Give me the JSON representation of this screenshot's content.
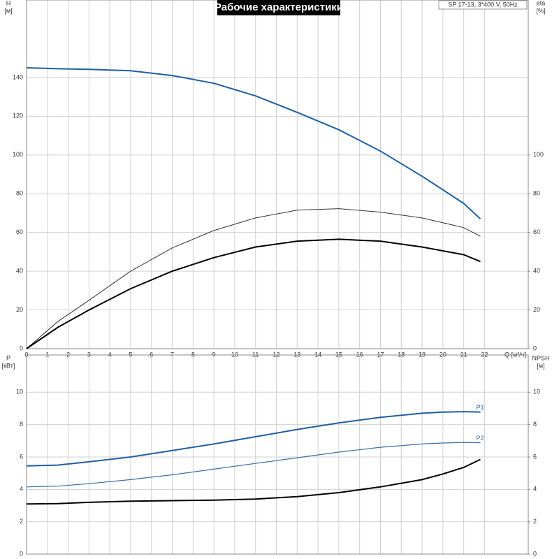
{
  "chart_data": [
    {
      "type": "line",
      "title": "Рабочие характеристики",
      "annotation": "SP 17-13, 3*400 V, 50Hz",
      "xlabel": "Q [м³/ч]",
      "ylabel": "H",
      "yunit": "[м]",
      "y2label": "eta",
      "y2unit": "[%]",
      "x": [
        0,
        1.5,
        3,
        5,
        7,
        9,
        11,
        13,
        15,
        17,
        19,
        21,
        21.8
      ],
      "xlim": [
        0,
        24.1
      ],
      "xticks": [
        0,
        1,
        2,
        3,
        4,
        5,
        6,
        7,
        8,
        9,
        10,
        11,
        12,
        13,
        14,
        15,
        16,
        17,
        18,
        19,
        20,
        21,
        22
      ],
      "ylim": [
        0,
        180
      ],
      "yticks": [
        0,
        20,
        40,
        60,
        80,
        100,
        120,
        140
      ],
      "y2lim": [
        0,
        180
      ],
      "y2ticks": [
        0,
        20,
        40,
        60,
        80,
        100
      ],
      "grid": true,
      "series": [
        {
          "color": "#1f5fa0",
          "line_width": 2,
          "values": [
            145,
            144.5,
            144.2,
            143.5,
            141,
            137,
            130.5,
            122,
            113,
            102,
            89,
            75,
            67
          ]
        },
        {
          "color": "#333333",
          "line_width": 1,
          "axis": "y2",
          "values": [
            0,
            14,
            25,
            40,
            52,
            61,
            67.5,
            71.5,
            72.3,
            70.5,
            67.5,
            62.5,
            58
          ]
        },
        {
          "color": "#000000",
          "line_width": 2,
          "axis": "y2",
          "values": [
            0,
            11,
            20,
            31,
            40,
            47,
            52.5,
            55.5,
            56.5,
            55.5,
            52.5,
            48.5,
            45
          ]
        }
      ]
    },
    {
      "type": "line",
      "ylabel": "P",
      "yunit": "[кВт]",
      "y2label": "NPSH",
      "y2unit": "[м]",
      "x": [
        0,
        1.5,
        3,
        5,
        7,
        9,
        11,
        13,
        15,
        17,
        19,
        20,
        21,
        21.8
      ],
      "xlim": [
        0,
        24.1
      ],
      "ylim": [
        0,
        12.3
      ],
      "yticks": [
        0,
        2,
        4,
        6,
        8,
        10
      ],
      "y2lim": [
        0,
        12.3
      ],
      "y2ticks": [
        0,
        2,
        4,
        6,
        8,
        10
      ],
      "grid": true,
      "series": [
        {
          "name": "P1",
          "color": "#1f5fa0",
          "line_width": 2,
          "values": [
            5.45,
            5.5,
            5.7,
            6.0,
            6.4,
            6.8,
            7.25,
            7.7,
            8.1,
            8.45,
            8.7,
            8.77,
            8.8,
            8.78
          ]
        },
        {
          "name": "P2",
          "color": "#3a6ea5",
          "line_width": 1.2,
          "values": [
            4.15,
            4.2,
            4.35,
            4.6,
            4.9,
            5.25,
            5.6,
            5.95,
            6.3,
            6.6,
            6.8,
            6.86,
            6.9,
            6.88
          ]
        },
        {
          "color": "#000000",
          "line_width": 2,
          "axis": "y2",
          "values": [
            3.1,
            3.12,
            3.2,
            3.27,
            3.3,
            3.33,
            3.4,
            3.55,
            3.8,
            4.15,
            4.6,
            4.95,
            5.35,
            5.85
          ]
        }
      ]
    }
  ]
}
